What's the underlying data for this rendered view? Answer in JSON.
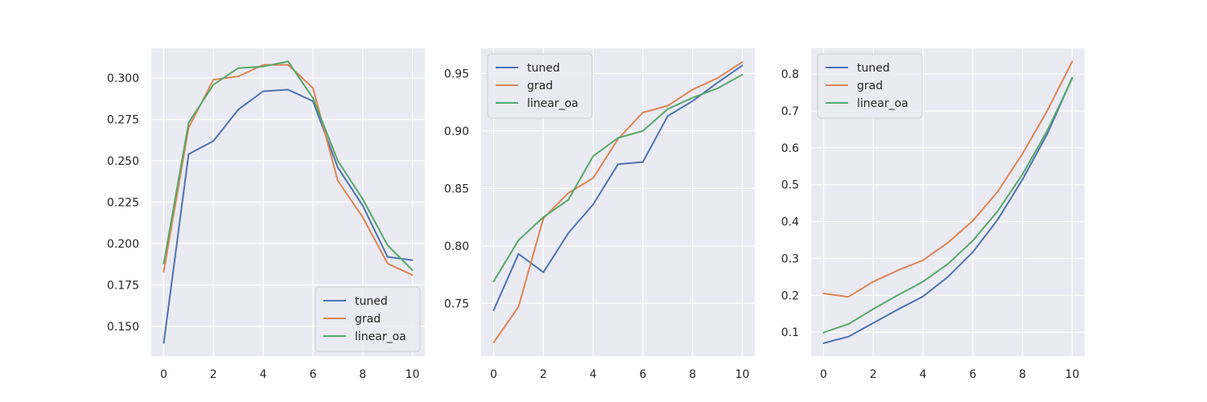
{
  "chart_data": [
    {
      "type": "line",
      "x": [
        0,
        1,
        2,
        3,
        4,
        5,
        6,
        7,
        8,
        9,
        10
      ],
      "xlim": [
        -0.5,
        10.5
      ],
      "ylim": [
        0.132,
        0.318
      ],
      "xticks": [
        0,
        2,
        4,
        6,
        8,
        10
      ],
      "yticks": [
        0.15,
        0.175,
        0.2,
        0.225,
        0.25,
        0.275,
        0.3
      ],
      "ytick_format": 3,
      "legend_position": "lower-right",
      "grid": true,
      "series": [
        {
          "name": "tuned",
          "color": "#4c72b0",
          "values": [
            0.14,
            0.254,
            0.262,
            0.281,
            0.292,
            0.293,
            0.286,
            0.246,
            0.223,
            0.192,
            0.19
          ]
        },
        {
          "name": "grad",
          "color": "#dd8452",
          "values": [
            0.183,
            0.27,
            0.299,
            0.301,
            0.308,
            0.308,
            0.294,
            0.238,
            0.216,
            0.188,
            0.181
          ]
        },
        {
          "name": "linear_oa",
          "color": "#55a868",
          "values": [
            0.188,
            0.273,
            0.296,
            0.306,
            0.307,
            0.31,
            0.288,
            0.25,
            0.227,
            0.199,
            0.184
          ]
        }
      ]
    },
    {
      "type": "line",
      "x": [
        0,
        1,
        2,
        3,
        4,
        5,
        6,
        7,
        8,
        9,
        10
      ],
      "xlim": [
        -0.5,
        10.5
      ],
      "ylim": [
        0.704,
        0.972
      ],
      "xticks": [
        0,
        2,
        4,
        6,
        8,
        10
      ],
      "yticks": [
        0.75,
        0.8,
        0.85,
        0.9,
        0.95
      ],
      "ytick_format": 2,
      "legend_position": "upper-left",
      "grid": true,
      "series": [
        {
          "name": "tuned",
          "color": "#4c72b0",
          "values": [
            0.744,
            0.793,
            0.777,
            0.811,
            0.836,
            0.871,
            0.873,
            0.913,
            0.926,
            0.942,
            0.957
          ]
        },
        {
          "name": "grad",
          "color": "#dd8452",
          "values": [
            0.716,
            0.747,
            0.824,
            0.846,
            0.859,
            0.893,
            0.916,
            0.922,
            0.936,
            0.946,
            0.96
          ]
        },
        {
          "name": "linear_oa",
          "color": "#55a868",
          "values": [
            0.769,
            0.805,
            0.825,
            0.84,
            0.878,
            0.894,
            0.9,
            0.919,
            0.929,
            0.937,
            0.949
          ]
        }
      ]
    },
    {
      "type": "line",
      "x": [
        0,
        1,
        2,
        3,
        4,
        5,
        6,
        7,
        8,
        9,
        10
      ],
      "xlim": [
        -0.5,
        10.5
      ],
      "ylim": [
        0.035,
        0.87
      ],
      "xticks": [
        0,
        2,
        4,
        6,
        8,
        10
      ],
      "yticks": [
        0.1,
        0.2,
        0.3,
        0.4,
        0.5,
        0.6,
        0.7,
        0.8
      ],
      "ytick_format": 1,
      "legend_position": "upper-left",
      "grid": true,
      "series": [
        {
          "name": "tuned",
          "color": "#4c72b0",
          "values": [
            0.07,
            0.088,
            0.125,
            0.162,
            0.197,
            0.25,
            0.317,
            0.405,
            0.514,
            0.638,
            0.79
          ]
        },
        {
          "name": "grad",
          "color": "#dd8452",
          "values": [
            0.205,
            0.196,
            0.237,
            0.268,
            0.295,
            0.343,
            0.402,
            0.481,
            0.584,
            0.701,
            0.834
          ]
        },
        {
          "name": "linear_oa",
          "color": "#55a868",
          "values": [
            0.099,
            0.122,
            0.163,
            0.201,
            0.237,
            0.285,
            0.348,
            0.428,
            0.528,
            0.647,
            0.788
          ]
        }
      ]
    }
  ]
}
